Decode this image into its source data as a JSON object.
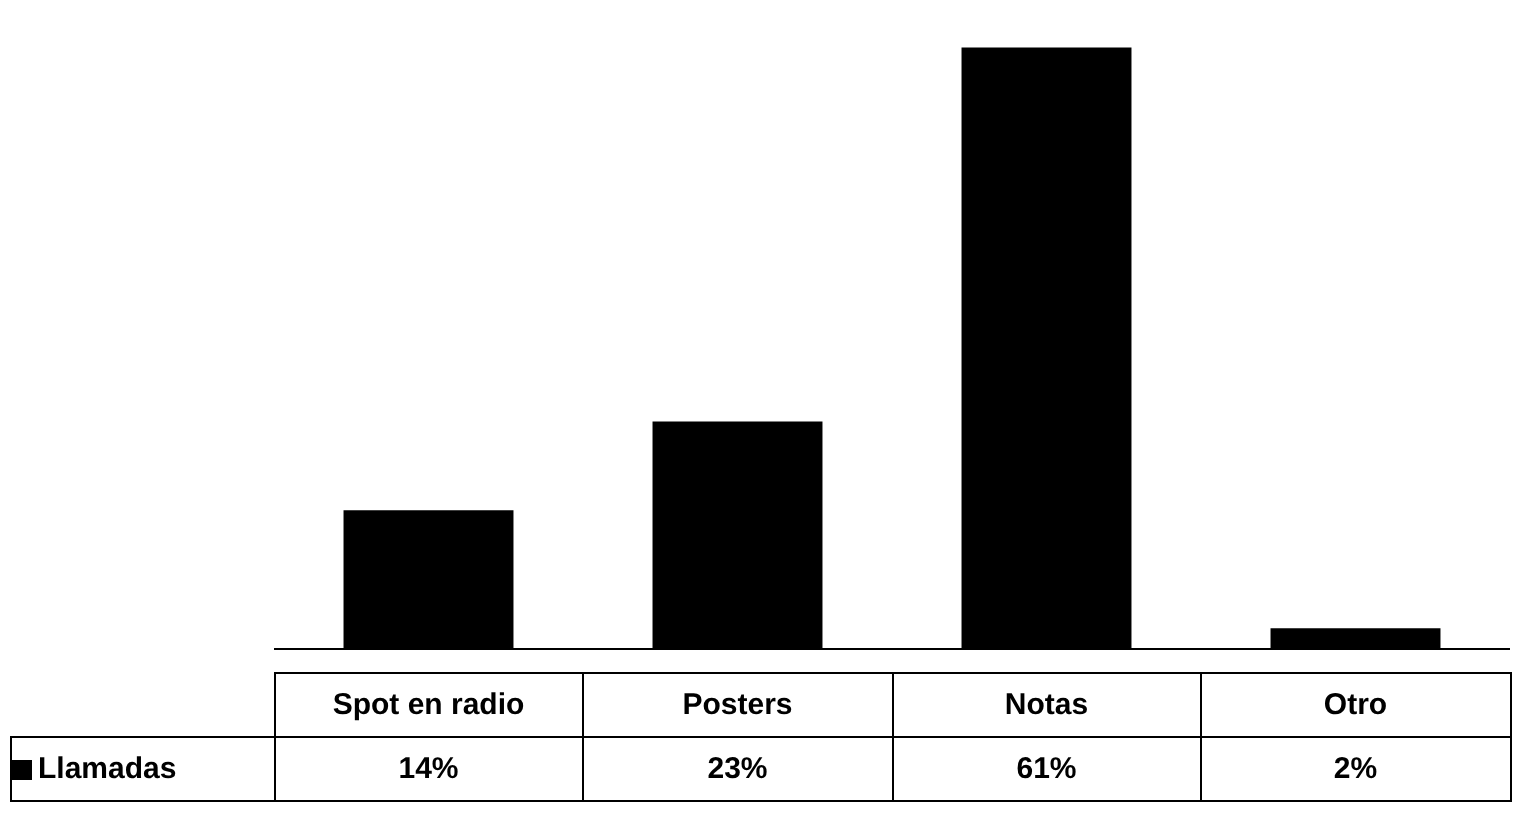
{
  "chart_data": {
    "type": "bar",
    "categories": [
      "Spot en radio",
      "Posters",
      "Notas",
      "Otro"
    ],
    "series": [
      {
        "name": "Llamadas",
        "color": "#000000",
        "values": [
          14,
          23,
          61,
          2
        ],
        "value_labels": [
          "14%",
          "23%",
          "61%",
          "2%"
        ]
      }
    ],
    "legend": "bottom left"
  }
}
